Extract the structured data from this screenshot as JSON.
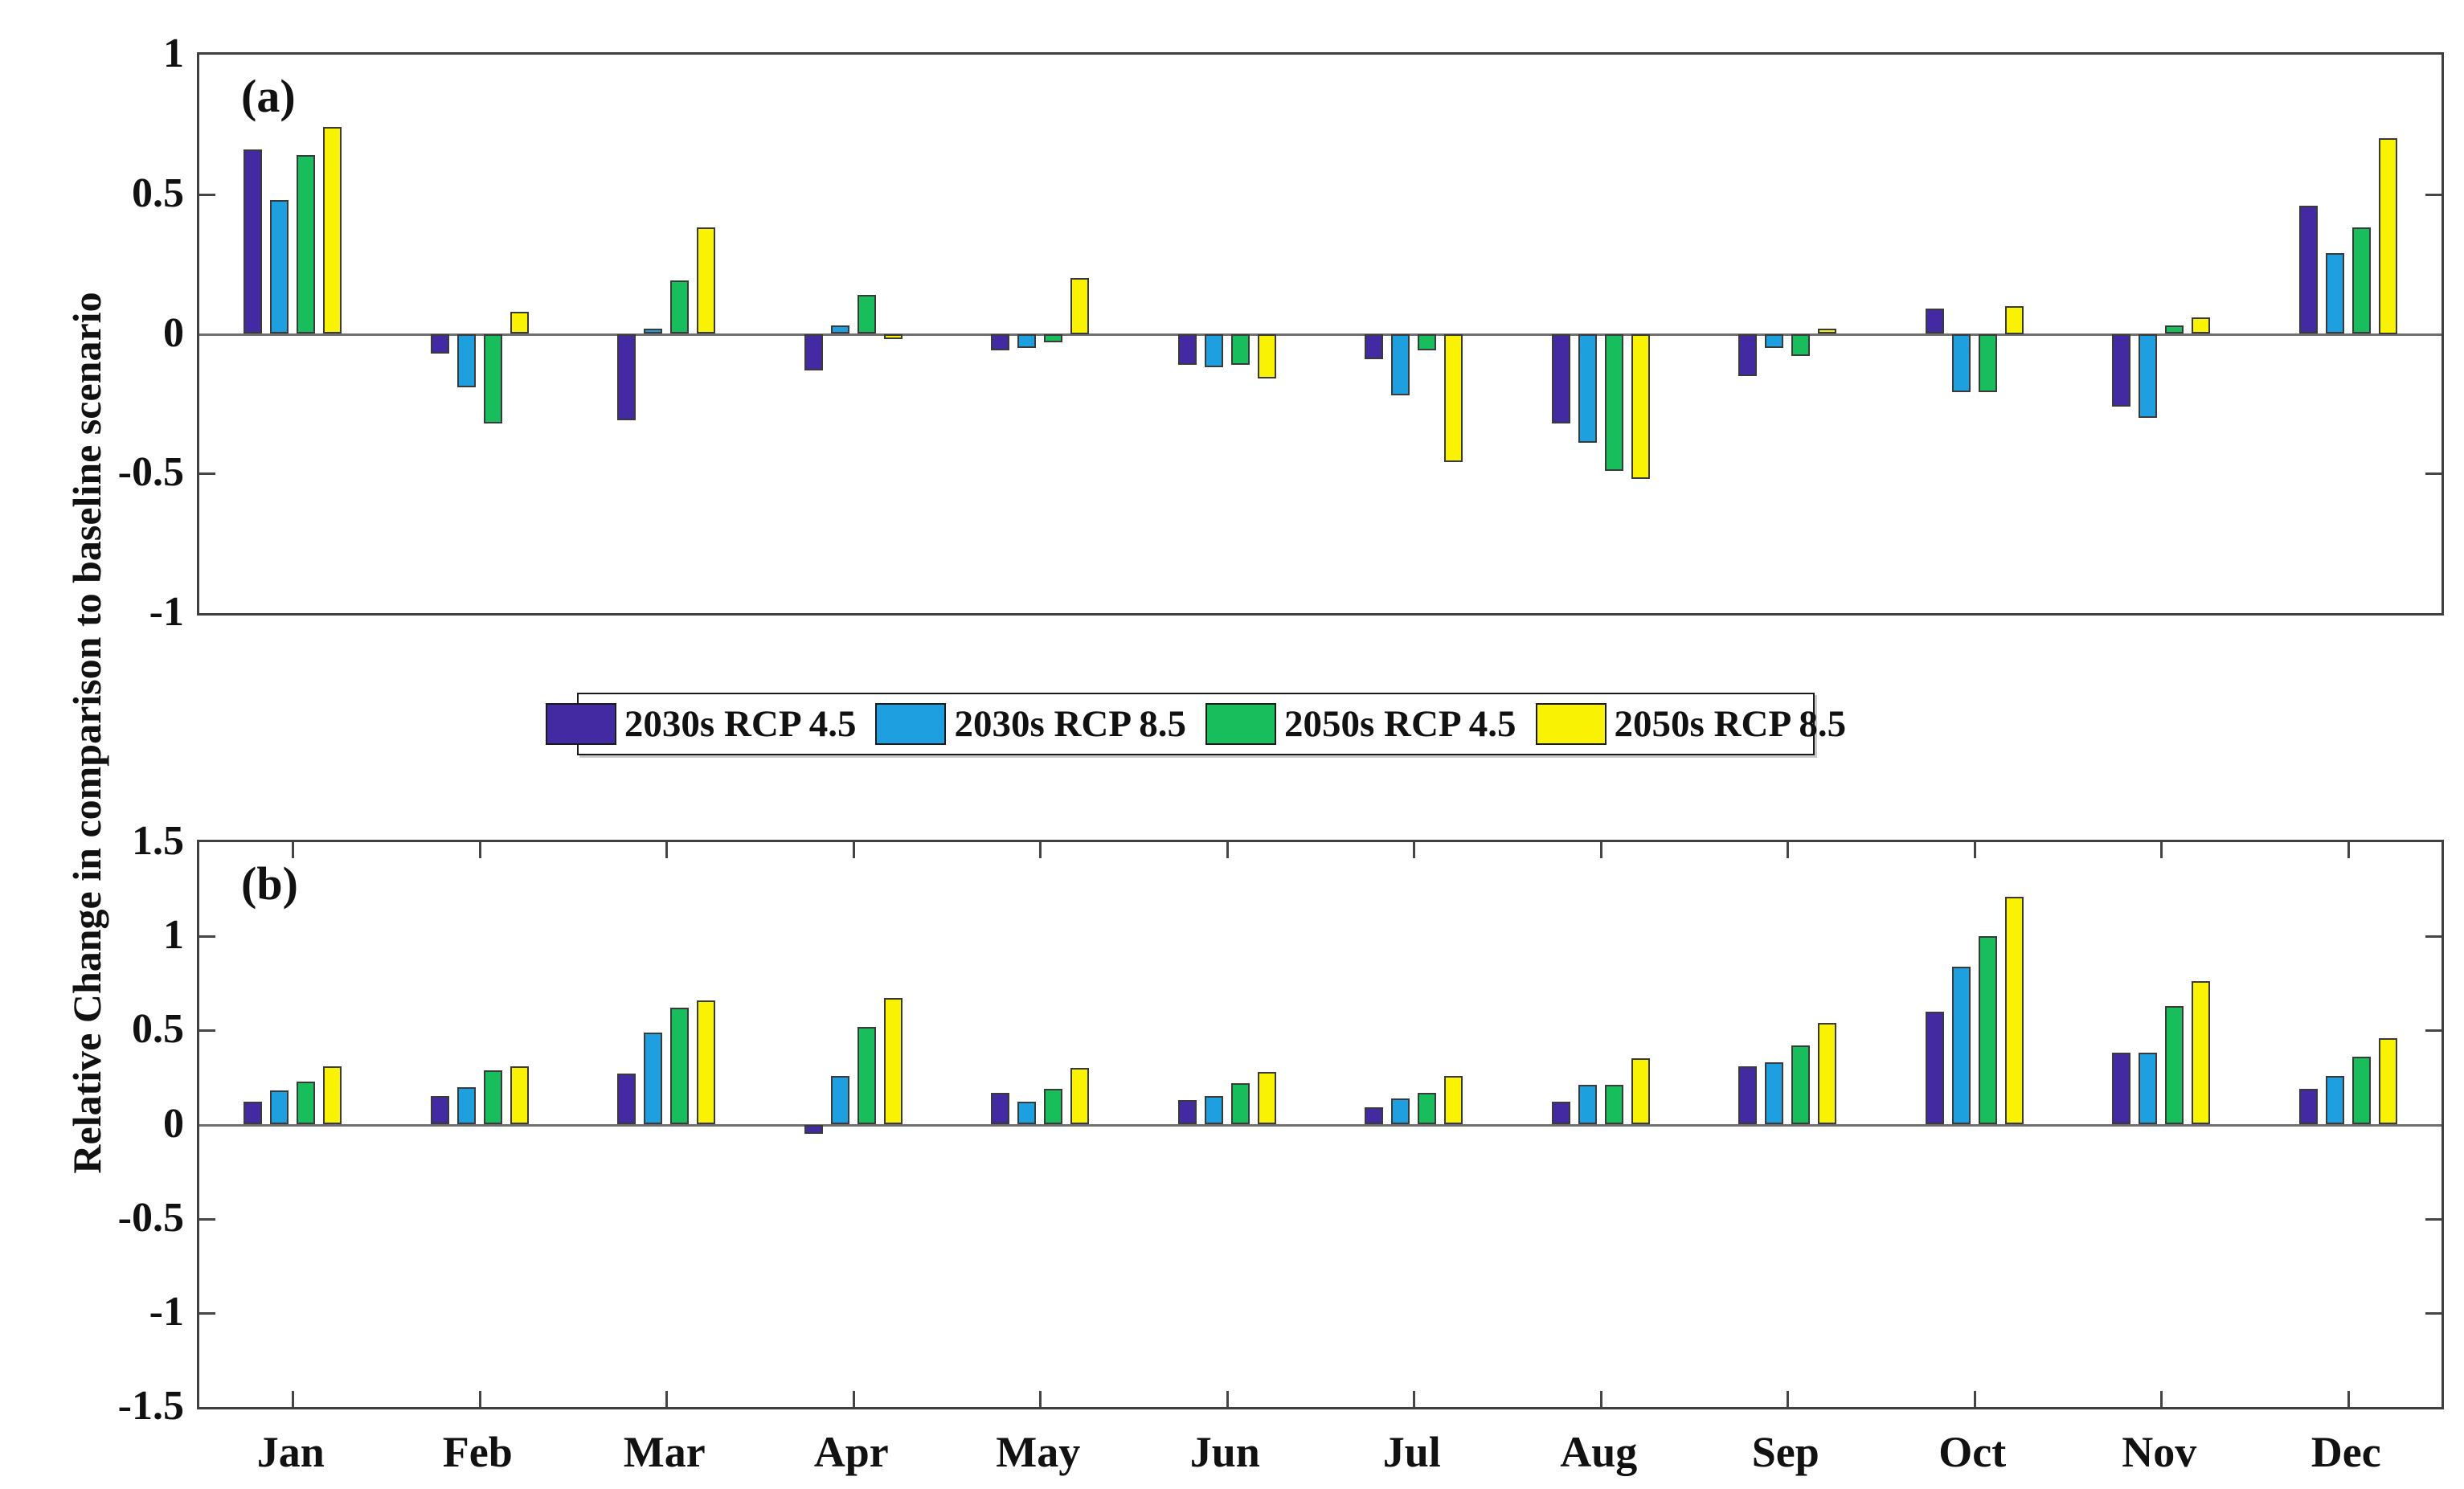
{
  "figure": {
    "ylabel": "Relative Change in comparison to baseline scenario",
    "background": "#ffffff",
    "axis_color": "#3f3f3f",
    "baseline_color": "#6f6f6f"
  },
  "legend": {
    "items": [
      {
        "label": "2030s RCP 4.5",
        "color": "#432AA3"
      },
      {
        "label": "2030s RCP 8.5",
        "color": "#1E9FE0"
      },
      {
        "label": "2050s RCP 4.5",
        "color": "#17BE5B"
      },
      {
        "label": "2050s RCP 8.5",
        "color": "#FAF203"
      }
    ]
  },
  "chart_data": [
    {
      "type": "bar",
      "panel_label": "(a)",
      "categories": [
        "Jan",
        "Feb",
        "Mar",
        "Apr",
        "May",
        "Jun",
        "Jul",
        "Aug",
        "Sep",
        "Oct",
        "Nov",
        "Dec"
      ],
      "series": [
        {
          "name": "2030s RCP 4.5",
          "values": [
            0.66,
            -0.07,
            -0.31,
            -0.13,
            -0.06,
            -0.11,
            -0.09,
            -0.32,
            -0.15,
            0.09,
            -0.26,
            0.46
          ]
        },
        {
          "name": "2030s RCP 8.5",
          "values": [
            0.48,
            -0.19,
            0.02,
            0.03,
            -0.05,
            -0.12,
            -0.22,
            -0.39,
            -0.05,
            -0.21,
            -0.3,
            0.29
          ]
        },
        {
          "name": "2050s RCP 4.5",
          "values": [
            0.64,
            -0.32,
            0.19,
            0.14,
            -0.03,
            -0.11,
            -0.06,
            -0.49,
            -0.08,
            -0.21,
            0.03,
            0.38
          ]
        },
        {
          "name": "2050s RCP 8.5",
          "values": [
            0.74,
            0.08,
            0.38,
            -0.02,
            0.2,
            -0.16,
            -0.46,
            -0.52,
            0.02,
            0.1,
            0.06,
            0.7
          ]
        }
      ],
      "ylim": [
        -1,
        1
      ],
      "yticks": [
        "1",
        "0.5",
        "0",
        "-0.5",
        "-1"
      ],
      "grid": false,
      "legend_position": "below",
      "x_ticks_visible": false,
      "month_labels_visible": false
    },
    {
      "type": "bar",
      "panel_label": "(b)",
      "categories": [
        "Jan",
        "Feb",
        "Mar",
        "Apr",
        "May",
        "Jun",
        "Jul",
        "Aug",
        "Sep",
        "Oct",
        "Nov",
        "Dec"
      ],
      "series": [
        {
          "name": "2030s RCP 4.5",
          "values": [
            0.12,
            0.15,
            0.27,
            -0.05,
            0.17,
            0.13,
            0.09,
            0.12,
            0.31,
            0.6,
            0.38,
            0.19
          ]
        },
        {
          "name": "2030s RCP 8.5",
          "values": [
            0.18,
            0.2,
            0.49,
            0.26,
            0.12,
            0.15,
            0.14,
            0.21,
            0.33,
            0.84,
            0.38,
            0.26
          ]
        },
        {
          "name": "2050s RCP 4.5",
          "values": [
            0.23,
            0.29,
            0.62,
            0.52,
            0.19,
            0.22,
            0.17,
            0.21,
            0.42,
            1.0,
            0.63,
            0.36
          ]
        },
        {
          "name": "2050s RCP 8.5",
          "values": [
            0.31,
            0.31,
            0.66,
            0.67,
            0.3,
            0.28,
            0.26,
            0.35,
            0.54,
            1.21,
            0.76,
            0.46
          ]
        }
      ],
      "ylim": [
        -1.5,
        1.5
      ],
      "yticks": [
        "1.5",
        "1",
        "0.5",
        "0",
        "-0.5",
        "-1",
        "-1.5"
      ],
      "grid": false,
      "x_ticks_visible": true,
      "month_labels_visible": true
    }
  ]
}
